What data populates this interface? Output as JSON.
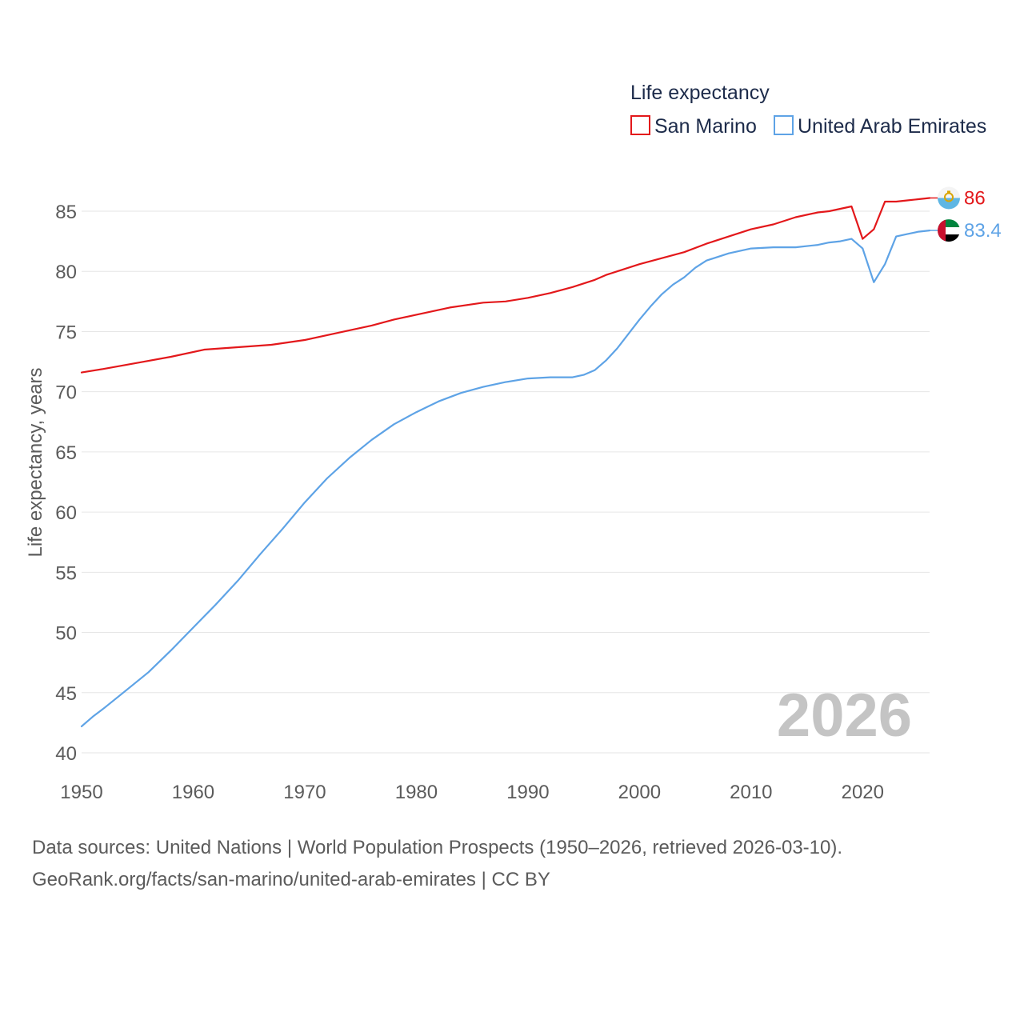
{
  "chart_data": {
    "type": "line",
    "legend_title": "Life expectancy",
    "ylabel": "Life expectancy, years",
    "xlabel": "",
    "ylim": [
      40,
      86
    ],
    "xlim": [
      1950,
      2026
    ],
    "yticks": [
      40,
      45,
      50,
      55,
      60,
      65,
      70,
      75,
      80,
      85
    ],
    "xticks": [
      1950,
      1960,
      1970,
      1980,
      1990,
      2000,
      2010,
      2020
    ],
    "year_label": "2026",
    "legend_position": "top-right",
    "series": [
      {
        "name": "San Marino",
        "color": "#e3181b",
        "end_label": "86",
        "flag": "san-marino-flag-icon",
        "x": [
          1950,
          1952,
          1955,
          1958,
          1961,
          1964,
          1967,
          1970,
          1973,
          1976,
          1978,
          1980,
          1983,
          1986,
          1988,
          1990,
          1992,
          1994,
          1996,
          1997,
          1998,
          2000,
          2002,
          2004,
          2006,
          2008,
          2010,
          2012,
          2013,
          2014,
          2016,
          2017,
          2018,
          2019,
          2020,
          2021,
          2022,
          2023,
          2024,
          2025,
          2026
        ],
        "values": [
          71.6,
          71.9,
          72.4,
          72.9,
          73.5,
          73.7,
          73.9,
          74.3,
          74.9,
          75.5,
          76.0,
          76.4,
          77.0,
          77.4,
          77.5,
          77.8,
          78.2,
          78.7,
          79.3,
          79.7,
          80.0,
          80.6,
          81.1,
          81.6,
          82.3,
          82.9,
          83.5,
          83.9,
          84.2,
          84.5,
          84.9,
          85.0,
          85.2,
          85.4,
          82.7,
          83.5,
          85.8,
          85.8,
          85.9,
          86.0,
          86.1
        ]
      },
      {
        "name": "United Arab Emirates",
        "color": "#5ea3e6",
        "end_label": "83.4",
        "flag": "uae-flag-icon",
        "x": [
          1950,
          1951,
          1952,
          1954,
          1956,
          1958,
          1960,
          1962,
          1964,
          1966,
          1968,
          1970,
          1972,
          1974,
          1976,
          1978,
          1980,
          1982,
          1984,
          1986,
          1988,
          1990,
          1992,
          1994,
          1995,
          1996,
          1997,
          1998,
          2000,
          2001,
          2002,
          2003,
          2004,
          2005,
          2006,
          2008,
          2010,
          2012,
          2014,
          2016,
          2017,
          2018,
          2019,
          2020,
          2021,
          2022,
          2023,
          2024,
          2025,
          2026
        ],
        "values": [
          42.2,
          43.0,
          43.7,
          45.2,
          46.7,
          48.5,
          50.4,
          52.3,
          54.3,
          56.5,
          58.6,
          60.8,
          62.8,
          64.5,
          66.0,
          67.3,
          68.3,
          69.2,
          69.9,
          70.4,
          70.8,
          71.1,
          71.2,
          71.2,
          71.4,
          71.8,
          72.6,
          73.6,
          76.0,
          77.1,
          78.1,
          78.9,
          79.5,
          80.3,
          80.9,
          81.5,
          81.9,
          82.0,
          82.0,
          82.2,
          82.4,
          82.5,
          82.7,
          81.9,
          79.1,
          80.6,
          82.9,
          83.1,
          83.3,
          83.4
        ]
      }
    ]
  },
  "source": {
    "line1": "Data sources: United Nations | World Population Prospects (1950–2026, retrieved 2026-03-10).",
    "line2": "GeoRank.org/facts/san-marino/united-arab-emirates | CC BY"
  }
}
